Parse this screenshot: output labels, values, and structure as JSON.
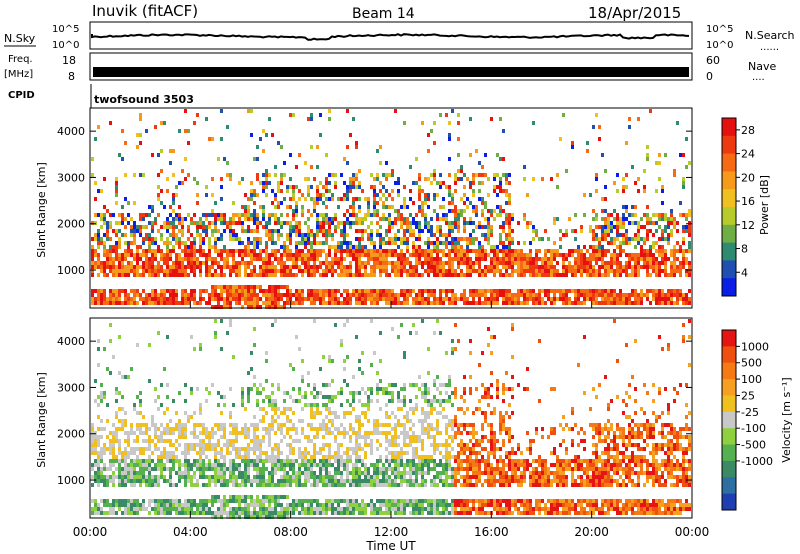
{
  "header": {
    "station": "Inuvik (fitACF)",
    "beam": "Beam 14",
    "date": "18/Apr/2015"
  },
  "top_panels": {
    "nsky_label": "N.Sky",
    "nsky_ticks": [
      "10^5",
      "10^0"
    ],
    "nsearch_label": "N.Search",
    "nsearch_ticks": [
      "10^5",
      "10^0"
    ],
    "freq_label_1": "Freq.",
    "freq_label_2": "[MHz]",
    "freq_ticks": [
      "18",
      "8"
    ],
    "nave_label": "Nave",
    "nave_ticks": [
      "60",
      "0"
    ],
    "cpid_label": "CPID",
    "cpid_text": "twofsound 3503"
  },
  "legend_dots": "......",
  "legend_dots_short": "....",
  "x_axis": {
    "ticks": [
      "00:00",
      "04:00",
      "08:00",
      "12:00",
      "16:00",
      "20:00",
      "00:00"
    ],
    "label": "Time UT"
  },
  "chart_data": [
    {
      "type": "heatmap",
      "panel": "power",
      "ylabel": "Slant Range [km]",
      "yticks": [
        "1000",
        "2000",
        "3000",
        "4000"
      ],
      "ylim": [
        180,
        4500
      ],
      "xlim_hours": [
        0,
        24
      ],
      "colorbar": {
        "label": "Power [dB]",
        "ticks": [
          "4",
          "8",
          "12",
          "16",
          "20",
          "24",
          "28"
        ],
        "range": [
          0,
          30
        ],
        "colors": [
          "#0a1ee6",
          "#1f4fb0",
          "#2e8b70",
          "#6fae45",
          "#b7cc2a",
          "#f0c020",
          "#f59a1a",
          "#f56a12",
          "#ee3a10",
          "#e51010"
        ]
      }
    },
    {
      "type": "heatmap",
      "panel": "velocity",
      "ylabel": "Slant Range [km]",
      "yticks": [
        "1000",
        "2000",
        "3000",
        "4000"
      ],
      "ylim": [
        180,
        4500
      ],
      "xlim_hours": [
        0,
        24
      ],
      "colorbar": {
        "label": "Velocity [m s⁻¹]",
        "ticks": [
          "1000",
          "500",
          "100",
          "25",
          "-25",
          "-100",
          "-500",
          "-1000"
        ],
        "colors": [
          "#1f3fb0",
          "#2c6fa0",
          "#3a8a66",
          "#55b050",
          "#8fd040",
          "#c8c8c8",
          "#f0c020",
          "#f5a020",
          "#f57a15",
          "#ef5010",
          "#e51515"
        ]
      }
    }
  ]
}
